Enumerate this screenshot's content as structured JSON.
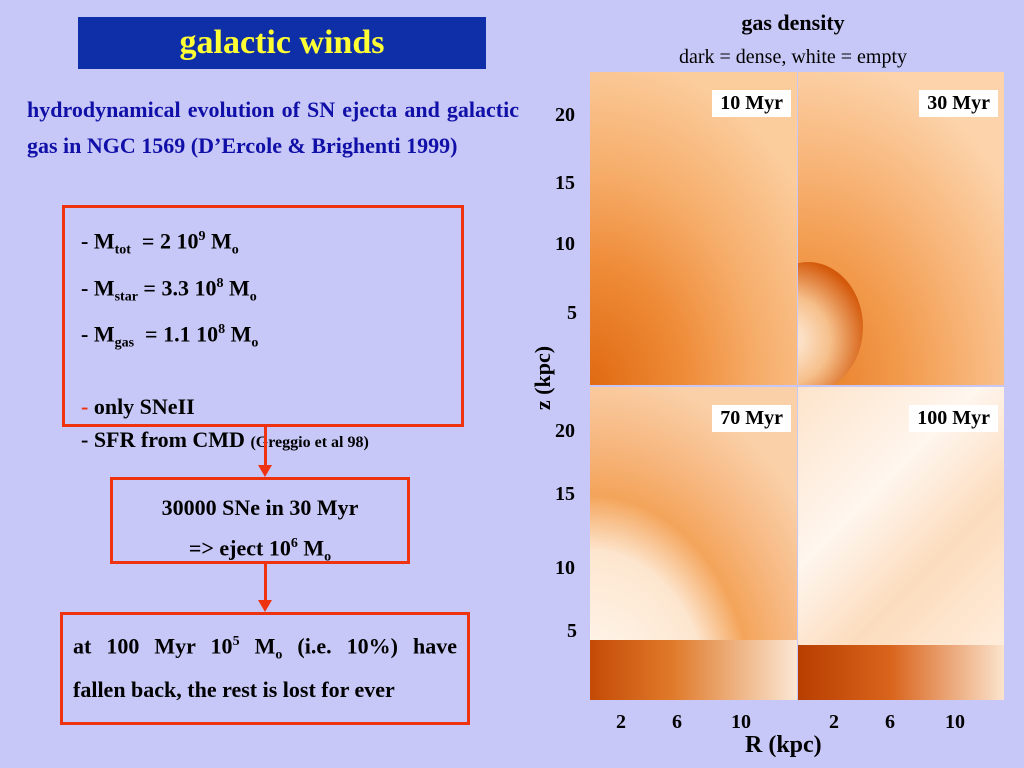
{
  "title": "galactic winds",
  "description": "hydrodynamical evolution of  SN ejecta and galactic gas in NGC 1569 (D’Ercole & Brighenti 1999)",
  "params": {
    "m_tot": {
      "dash": "- M",
      "sub": "tot",
      "mid": "  = 2 10",
      "sup": "9",
      "tail": " M",
      "sub2": "o"
    },
    "m_star": {
      "dash": "- M",
      "sub": "star",
      "mid": " = 3.3 10",
      "sup": "8",
      "tail": " M",
      "sub2": "o"
    },
    "m_gas": {
      "dash": "- M",
      "sub": "gas",
      "mid": "  = 1.1 10",
      "sup": "8",
      "tail": " M",
      "sub2": "o"
    },
    "sneii": {
      "dash": "-",
      "text": " only SNeII"
    },
    "sfr": {
      "text": "- SFR from CMD ",
      "small": "(Greggio et al 98)"
    }
  },
  "sne": {
    "line1": "30000 SNe in 30 Myr",
    "line2_pre": "=> eject 10",
    "line2_sup": "6",
    "line2_mid": " M",
    "line2_sub": "o"
  },
  "result": {
    "pre": "at  100  Myr  10",
    "sup": "5",
    "mid": "  M",
    "sub": "o",
    "post": "  (i.e.  10%)  have fallen back, the rest is lost for ever"
  },
  "figure": {
    "title": "gas density",
    "subtitle": "dark = dense, white = empty",
    "panels": [
      "10 Myr",
      "30 Myr",
      "70 Myr",
      "100 Myr"
    ],
    "y_ticks": [
      "20",
      "15",
      "10",
      "5"
    ],
    "x_ticks": [
      "2",
      "6",
      "10"
    ],
    "ylabel": "z (kpc)",
    "xlabel": "R (kpc)"
  }
}
